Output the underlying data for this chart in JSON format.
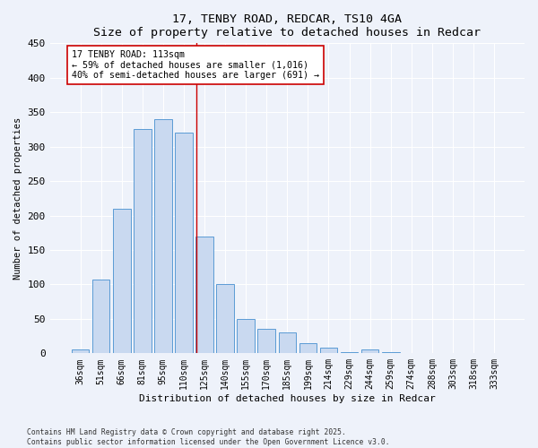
{
  "title1": "17, TENBY ROAD, REDCAR, TS10 4GA",
  "title2": "Size of property relative to detached houses in Redcar",
  "xlabel": "Distribution of detached houses by size in Redcar",
  "ylabel": "Number of detached properties",
  "categories": [
    "36sqm",
    "51sqm",
    "66sqm",
    "81sqm",
    "95sqm",
    "110sqm",
    "125sqm",
    "140sqm",
    "155sqm",
    "170sqm",
    "185sqm",
    "199sqm",
    "214sqm",
    "229sqm",
    "244sqm",
    "259sqm",
    "274sqm",
    "288sqm",
    "303sqm",
    "318sqm",
    "333sqm"
  ],
  "values": [
    5,
    107,
    210,
    325,
    340,
    320,
    170,
    100,
    50,
    35,
    30,
    15,
    8,
    2,
    5,
    2,
    1,
    1,
    1,
    1,
    1
  ],
  "bar_color": "#c9d9f0",
  "bar_edge_color": "#5b9bd5",
  "vline_x": 5.6,
  "vline_color": "#cc0000",
  "annotation_text": "17 TENBY ROAD: 113sqm\n← 59% of detached houses are smaller (1,016)\n40% of semi-detached houses are larger (691) →",
  "annotation_box_color": "#ffffff",
  "annotation_box_edge": "#cc0000",
  "ylim": [
    0,
    450
  ],
  "yticks": [
    0,
    50,
    100,
    150,
    200,
    250,
    300,
    350,
    400,
    450
  ],
  "footer1": "Contains HM Land Registry data © Crown copyright and database right 2025.",
  "footer2": "Contains public sector information licensed under the Open Government Licence v3.0.",
  "background_color": "#eef2fa",
  "grid_color": "#ffffff"
}
